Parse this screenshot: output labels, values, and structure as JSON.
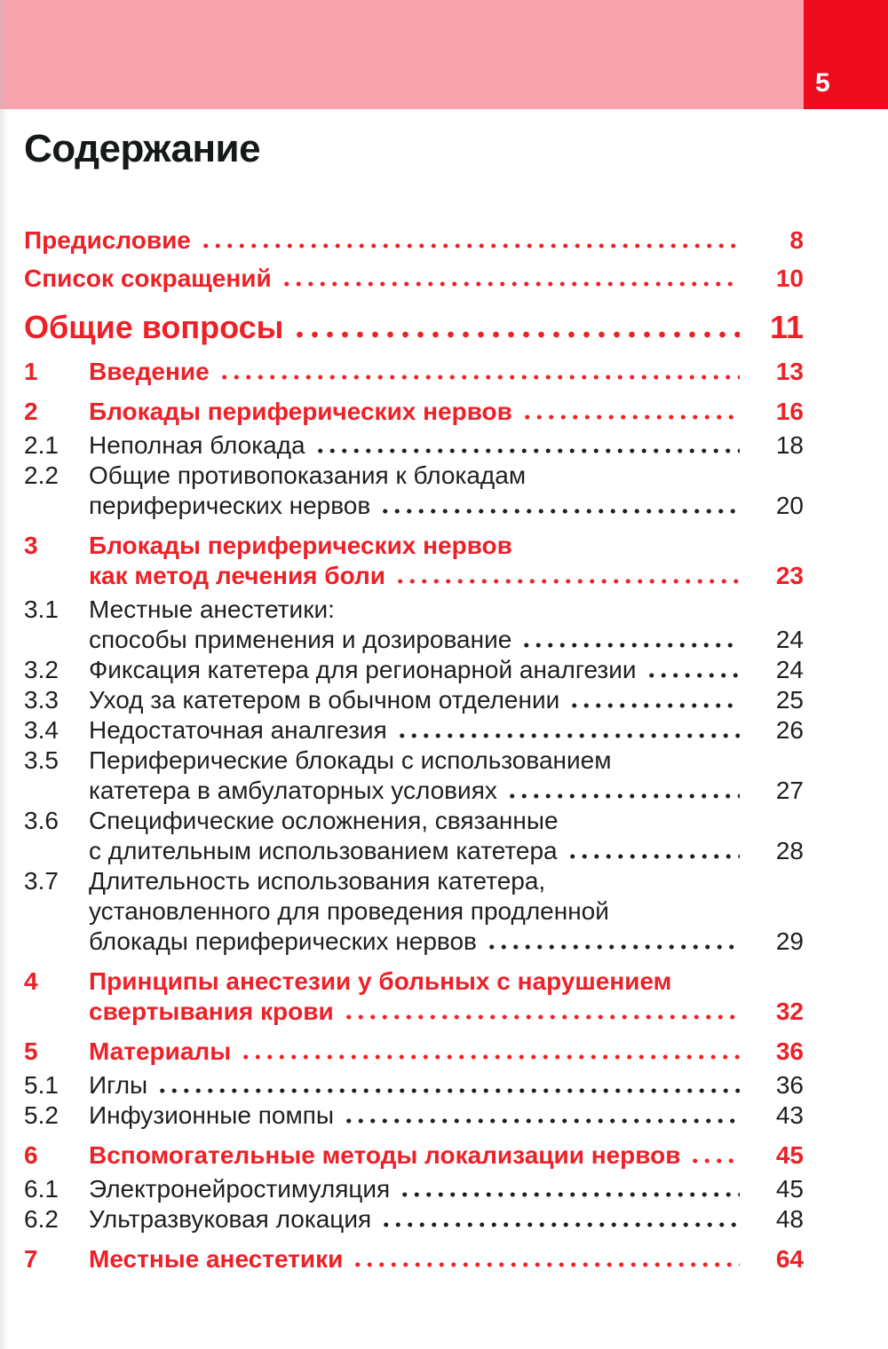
{
  "header": {
    "page_number": "5"
  },
  "title": "Содержание",
  "colors": {
    "band_pink": "#f8a2ae",
    "corner_red": "#ee0c1f",
    "accent_red": "#ed2128",
    "ink": "#1e201d",
    "title_ink": "#15191a",
    "page_background": "#ffffff"
  },
  "toc": {
    "entries": [
      {
        "num": "",
        "lines": [
          "Предисловие"
        ],
        "page": "8",
        "style": "front"
      },
      {
        "num": "",
        "lines": [
          "Список сокращений"
        ],
        "page": "10",
        "style": "front"
      },
      {
        "num": "",
        "lines": [
          "Общие вопросы"
        ],
        "page": "11",
        "style": "part"
      },
      {
        "num": "1",
        "lines": [
          "Введение"
        ],
        "page": "13",
        "style": "chapter"
      },
      {
        "num": "2",
        "lines": [
          "Блокады периферических нервов"
        ],
        "page": "16",
        "style": "chapter"
      },
      {
        "num": "2.1",
        "lines": [
          "Неполная блокада"
        ],
        "page": "18",
        "style": "sub"
      },
      {
        "num": "2.2",
        "lines": [
          "Общие противопоказания к блокадам",
          "периферических нервов"
        ],
        "page": "20",
        "style": "sub"
      },
      {
        "num": "3",
        "lines": [
          "Блокады периферических нервов",
          "как метод лечения боли"
        ],
        "page": "23",
        "style": "chapter"
      },
      {
        "num": "3.1",
        "lines": [
          "Местные анестетики:",
          "способы применения и дозирование"
        ],
        "page": "24",
        "style": "sub"
      },
      {
        "num": "3.2",
        "lines": [
          "Фиксация катетера для регионарной аналгезии"
        ],
        "page": "24",
        "style": "sub"
      },
      {
        "num": "3.3",
        "lines": [
          "Уход за катетером в обычном отделении"
        ],
        "page": "25",
        "style": "sub"
      },
      {
        "num": "3.4",
        "lines": [
          "Недостаточная аналгезия"
        ],
        "page": "26",
        "style": "sub"
      },
      {
        "num": "3.5",
        "lines": [
          "Периферические блокады с использованием",
          "катетера в амбулаторных условиях"
        ],
        "page": "27",
        "style": "sub"
      },
      {
        "num": "3.6",
        "lines": [
          "Специфические осложнения, связанные",
          "с длительным использованием катетера"
        ],
        "page": "28",
        "style": "sub"
      },
      {
        "num": "3.7",
        "lines": [
          "Длительность использования катетера,",
          "установленного для проведения продленной",
          "блокады периферических нервов"
        ],
        "page": "29",
        "style": "sub"
      },
      {
        "num": "4",
        "lines": [
          "Принципы анестезии у больных с нарушением",
          "свертывания крови"
        ],
        "page": "32",
        "style": "chapter"
      },
      {
        "num": "5",
        "lines": [
          "Материалы"
        ],
        "page": "36",
        "style": "chapter"
      },
      {
        "num": "5.1",
        "lines": [
          "Иглы"
        ],
        "page": "36",
        "style": "sub"
      },
      {
        "num": "5.2",
        "lines": [
          "Инфузионные помпы"
        ],
        "page": "43",
        "style": "sub"
      },
      {
        "num": "6",
        "lines": [
          "Вспомогательные методы локализации нервов"
        ],
        "page": "45",
        "style": "chapter"
      },
      {
        "num": "6.1",
        "lines": [
          "Электронейростимуляция"
        ],
        "page": "45",
        "style": "sub"
      },
      {
        "num": "6.2",
        "lines": [
          "Ультразвуковая локация"
        ],
        "page": "48",
        "style": "sub"
      },
      {
        "num": "7",
        "lines": [
          "Местные анестетики"
        ],
        "page": "64",
        "style": "chapter"
      }
    ]
  }
}
